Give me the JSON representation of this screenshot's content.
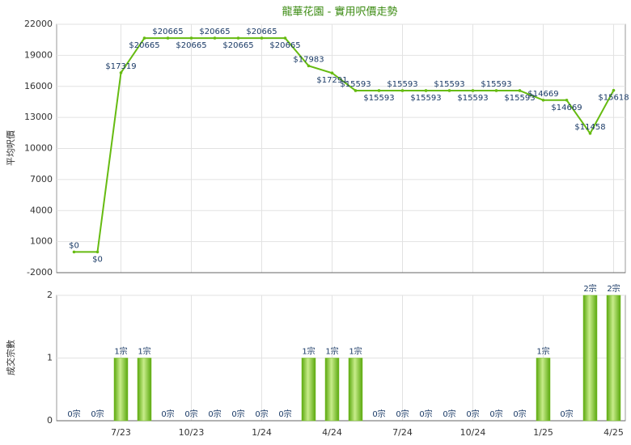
{
  "chart_data": [
    {
      "type": "line",
      "title": "龍華花園 - 實用呎價走勢",
      "y_label": "平均呎價",
      "color": "#66bb11",
      "values": [
        0,
        0,
        17319,
        20665,
        20665,
        20665,
        20665,
        20665,
        20665,
        20665,
        17983,
        17291,
        15593,
        15593,
        15593,
        15593,
        15593,
        15593,
        15593,
        15593,
        14669,
        14669,
        11458,
        15618
      ],
      "value_labels": [
        "$0",
        "$0",
        "$17319",
        "$20665",
        "$20665",
        "$20665",
        "$20665",
        "$20665",
        "$20665",
        "$20665",
        "$17983",
        "$17291",
        "$15593",
        "$15593",
        "$15593",
        "$15593",
        "$15593",
        "$15593",
        "$15593",
        "$15593",
        "$14669",
        "$14669",
        "$11458",
        "$15618"
      ],
      "ylim": [
        -2000,
        22000
      ],
      "yticks": [
        -2000,
        1000,
        4000,
        7000,
        10000,
        13000,
        16000,
        19000,
        22000
      ],
      "grid": true
    },
    {
      "type": "bar",
      "y_label": "成交宗數",
      "color": "#77c022",
      "categories": [
        null,
        null,
        "7/23",
        null,
        null,
        "10/23",
        null,
        null,
        "1/24",
        null,
        null,
        "4/24",
        null,
        null,
        "7/24",
        null,
        null,
        "10/24",
        null,
        null,
        "1/25",
        null,
        null,
        "4/25"
      ],
      "values": [
        0,
        0,
        1,
        1,
        0,
        0,
        0,
        0,
        0,
        0,
        1,
        1,
        1,
        0,
        0,
        0,
        0,
        0,
        0,
        0,
        1,
        0,
        2,
        2
      ],
      "value_labels": [
        "0宗",
        "0宗",
        "1宗",
        "1宗",
        "0宗",
        "0宗",
        "0宗",
        "0宗",
        "0宗",
        "0宗",
        "1宗",
        "1宗",
        "1宗",
        "0宗",
        "0宗",
        "0宗",
        "0宗",
        "0宗",
        "0宗",
        "0宗",
        "1宗",
        "0宗",
        "2宗",
        "2宗"
      ],
      "ylim": [
        0,
        2
      ],
      "yticks": [
        0,
        1,
        2
      ],
      "grid": true
    }
  ]
}
